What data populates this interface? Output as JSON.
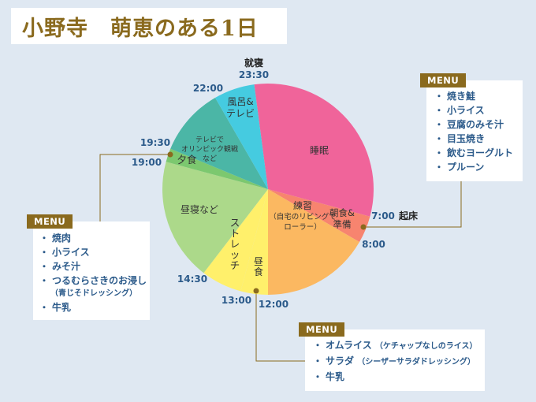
{
  "title": "小野寺　萌恵のある1日",
  "chart_data": {
    "type": "pie",
    "title": "小野寺　萌恵のある1日",
    "unit": "hours of day",
    "slices": [
      {
        "label": "睡眠",
        "start": 23.5,
        "end": 31.0,
        "color": "#f0649a"
      },
      {
        "label": "朝食&\n準備",
        "start": 7.0,
        "end": 8.0,
        "color": "#f7846f"
      },
      {
        "label": "練習\n（自宅のリビングで\nローラー）",
        "start": 8.0,
        "end": 12.0,
        "color": "#fbb861"
      },
      {
        "label": "昼食",
        "start": 12.0,
        "end": 13.0,
        "color": "#fff06b"
      },
      {
        "label": "ストレッチ",
        "start": 13.0,
        "end": 14.5,
        "color": "#fff06b"
      },
      {
        "label": "昼寝など",
        "start": 14.5,
        "end": 19.0,
        "color": "#acd98a"
      },
      {
        "label": "夕食",
        "start": 19.0,
        "end": 19.5,
        "color": "#7cc86f"
      },
      {
        "label": "テレビで\nオリンピック観戦\nなど",
        "start": 19.5,
        "end": 22.0,
        "color": "#4bb6a6"
      },
      {
        "label": "風呂&\nテレビ",
        "start": 22.0,
        "end": 23.5,
        "color": "#45cbe0"
      }
    ],
    "time_labels": [
      {
        "text": "就寝",
        "value": 23.5
      },
      {
        "text": "23:30",
        "value": 23.5
      },
      {
        "text": "22:00",
        "value": 22.0
      },
      {
        "text": "19:30",
        "value": 19.5
      },
      {
        "text": "19:00",
        "value": 19.0
      },
      {
        "text": "14:30",
        "value": 14.5
      },
      {
        "text": "13:00",
        "value": 13.0
      },
      {
        "text": "12:00",
        "value": 12.0
      },
      {
        "text": "8:00",
        "value": 8.0
      },
      {
        "text": "7:00",
        "value": 7.0
      },
      {
        "text": "起床",
        "value": 7.0
      }
    ]
  },
  "menus": {
    "breakfast": {
      "tag": "MENU",
      "items": [
        "焼き鮭",
        "小ライス",
        "豆腐のみそ汁",
        "目玉焼き",
        "飲むヨーグルト",
        "プルーン"
      ]
    },
    "dinner": {
      "tag": "MENU",
      "items": [
        "焼肉",
        "小ライス",
        "みそ汁",
        "つるむらさきのお浸し",
        "（青じそドレッシング）",
        "牛乳"
      ]
    },
    "lunch": {
      "tag": "MENU",
      "items": [
        "オムライス",
        "サラダ",
        "牛乳"
      ],
      "notes": [
        "（ケチャップなしのライス）",
        "（シーザーサラダドレッシング）",
        ""
      ]
    },
    "bullet": "・"
  },
  "colors": {
    "accent": "#8a6a1e",
    "label_blue": "#2b5a8a",
    "leader": "#8a6a1e"
  }
}
